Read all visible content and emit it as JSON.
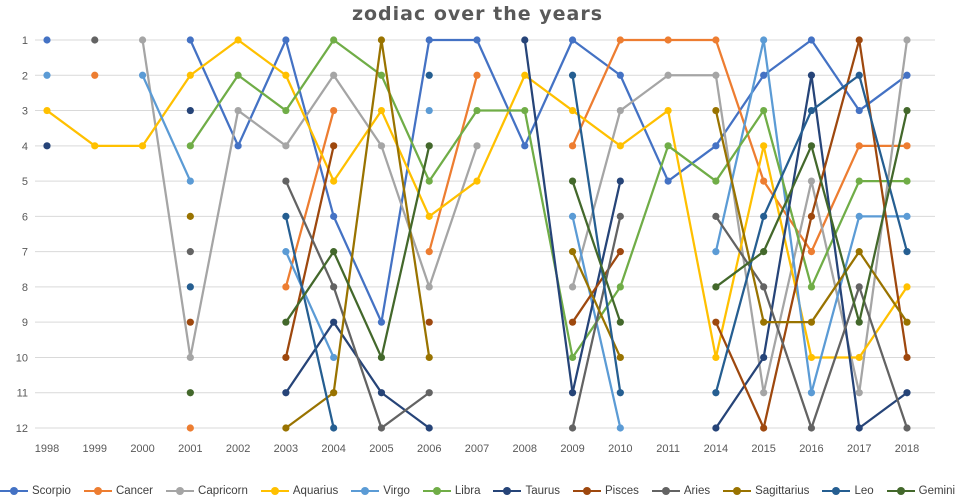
{
  "chart_data": {
    "type": "line",
    "title": "zodiac over the years",
    "x_labels": [
      "1998",
      "1999",
      "2000",
      "2001",
      "2002",
      "2003",
      "2004",
      "2005",
      "2006",
      "2007",
      "2008",
      "2009",
      "2010",
      "2011",
      "2014",
      "2015",
      "2016",
      "2017",
      "2018"
    ],
    "y_ticks": [
      "1",
      "2",
      "3",
      "4",
      "5",
      "6",
      "7",
      "8",
      "9",
      "10",
      "11",
      "12"
    ],
    "ylim": [
      1,
      12
    ],
    "y_inverted": true,
    "grid": true,
    "legend_position": "bottom",
    "axis_color": "#595959",
    "grid_color": "#D9D9D9",
    "title_color": "#595959",
    "series": [
      {
        "name": "Scorpio",
        "color": "#4472C4",
        "values": [
          1,
          null,
          null,
          1,
          4,
          1,
          6,
          9,
          1,
          1,
          4,
          1,
          2,
          5,
          4,
          2,
          1,
          3,
          2
        ]
      },
      {
        "name": "Cancer",
        "color": "#ED7D31",
        "values": [
          null,
          2,
          null,
          12,
          null,
          8,
          3,
          null,
          7,
          2,
          null,
          4,
          1,
          1,
          1,
          5,
          7,
          4,
          4
        ]
      },
      {
        "name": "Capricorn",
        "color": "#A5A5A5",
        "values": [
          null,
          null,
          1,
          10,
          3,
          4,
          2,
          4,
          8,
          4,
          null,
          8,
          3,
          2,
          2,
          11,
          5,
          11,
          1
        ]
      },
      {
        "name": "Aquarius",
        "color": "#FFC000",
        "values": [
          3,
          4,
          4,
          2,
          1,
          2,
          5,
          3,
          6,
          5,
          2,
          3,
          4,
          3,
          10,
          4,
          10,
          10,
          8
        ]
      },
      {
        "name": "Virgo",
        "color": "#5B9BD5",
        "values": [
          2,
          null,
          2,
          5,
          null,
          7,
          10,
          null,
          3,
          null,
          null,
          6,
          12,
          null,
          7,
          1,
          11,
          6,
          6
        ]
      },
      {
        "name": "Libra",
        "color": "#70AD47",
        "values": [
          null,
          null,
          null,
          4,
          2,
          3,
          1,
          2,
          5,
          3,
          3,
          10,
          8,
          4,
          5,
          3,
          8,
          5,
          5
        ]
      },
      {
        "name": "Taurus",
        "color": "#264478",
        "values": [
          4,
          null,
          null,
          3,
          null,
          11,
          9,
          11,
          12,
          null,
          1,
          11,
          5,
          null,
          12,
          10,
          2,
          12,
          11
        ]
      },
      {
        "name": "Pisces",
        "color": "#9E480E",
        "values": [
          null,
          null,
          null,
          9,
          null,
          10,
          4,
          null,
          9,
          null,
          null,
          9,
          7,
          null,
          9,
          12,
          6,
          1,
          10
        ]
      },
      {
        "name": "Aries",
        "color": "#636363",
        "values": [
          null,
          1,
          null,
          7,
          null,
          5,
          8,
          12,
          11,
          null,
          null,
          12,
          6,
          null,
          6,
          8,
          12,
          8,
          12
        ]
      },
      {
        "name": "Sagittarius",
        "color": "#997300",
        "values": [
          null,
          null,
          null,
          6,
          null,
          12,
          11,
          1,
          10,
          null,
          null,
          7,
          10,
          null,
          3,
          9,
          9,
          7,
          9
        ]
      },
      {
        "name": "Leo",
        "color": "#255E91",
        "values": [
          null,
          null,
          null,
          8,
          null,
          6,
          12,
          null,
          2,
          null,
          null,
          2,
          11,
          null,
          11,
          6,
          3,
          2,
          7
        ]
      },
      {
        "name": "Gemini",
        "color": "#43682B",
        "values": [
          null,
          null,
          null,
          11,
          null,
          9,
          7,
          10,
          4,
          null,
          null,
          5,
          9,
          null,
          8,
          7,
          4,
          9,
          3
        ]
      }
    ]
  }
}
